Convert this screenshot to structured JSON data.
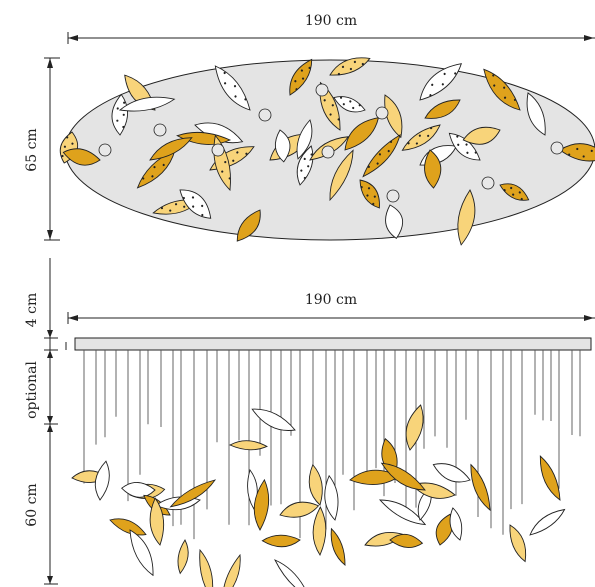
{
  "top_view": {
    "width_label": "190 cm",
    "height_label": "65 cm"
  },
  "side_view": {
    "width_label": "190 cm",
    "canopy_label": "4 cm",
    "optional_label": "optional",
    "drop_label": "60 cm"
  },
  "colors": {
    "canopy_fill": "#e4e4e4",
    "leaf_light": "#f8d47a",
    "leaf_amber": "#dfa21c",
    "leaf_white": "#ffffff",
    "outline": "#222222"
  }
}
